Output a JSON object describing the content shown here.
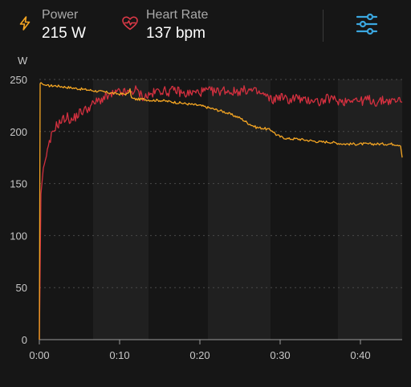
{
  "header": {
    "power": {
      "label": "Power",
      "value": "215 W",
      "icon": "lightning-bolt-icon",
      "color": "#F5A623"
    },
    "heart_rate": {
      "label": "Heart Rate",
      "value": "137 bpm",
      "icon": "heart-pulse-icon",
      "color": "#E03A48"
    },
    "filter_button": {
      "icon": "sliders-icon",
      "color": "#3BA7E0"
    }
  },
  "colors": {
    "background": "#161616",
    "band_light": "#202020",
    "band_dark": "#161616",
    "grid": "#4a4a4a",
    "axis_text": "#c8c8c8"
  },
  "chart_data": {
    "type": "line",
    "ylabel": "W",
    "ylim": [
      0,
      250
    ],
    "yticks": [
      0,
      50,
      100,
      150,
      200,
      250
    ],
    "xlim": [
      0,
      45.2
    ],
    "xticks": [
      {
        "value": 0,
        "label": "0:00"
      },
      {
        "value": 10,
        "label": "0:10"
      },
      {
        "value": 20,
        "label": "0:20"
      },
      {
        "value": 30,
        "label": "0:30"
      },
      {
        "value": 40,
        "label": "0:40"
      }
    ],
    "background_bands": [
      [
        6.7,
        13.6
      ],
      [
        21.0,
        28.8
      ],
      [
        37.2,
        45.2
      ]
    ],
    "grid": true,
    "series": [
      {
        "name": "Power",
        "color": "#F5A623",
        "x": [
          0,
          0.1,
          0.2,
          0.5,
          1,
          2,
          3,
          4,
          5,
          6,
          7,
          8,
          9,
          10,
          11,
          11.3,
          11.5,
          12,
          13,
          14,
          15,
          16,
          17,
          18,
          19,
          20,
          21,
          22,
          23,
          24,
          25,
          26,
          26.5,
          27,
          28,
          29,
          29.5,
          30,
          31,
          32,
          33,
          34,
          35,
          36,
          37,
          38,
          39,
          40,
          41,
          42,
          43,
          44,
          45,
          45.2
        ],
        "y": [
          0,
          246,
          247,
          245,
          244,
          244,
          243,
          242,
          241,
          240,
          239,
          238,
          237,
          236,
          236,
          240,
          232,
          231,
          231,
          230,
          230,
          229,
          228,
          227,
          226,
          225,
          223,
          221,
          219,
          216,
          213,
          208,
          206,
          204,
          203,
          201,
          197,
          195,
          193,
          193,
          192,
          191,
          190,
          190,
          189,
          188,
          188,
          188,
          188,
          188,
          188,
          188,
          187,
          175
        ]
      },
      {
        "name": "Heart Rate",
        "color": "#D3303F",
        "x": [
          0,
          0.2,
          0.5,
          1,
          1.5,
          2,
          2.5,
          3,
          3.5,
          4,
          5,
          6,
          7,
          8,
          9,
          10,
          11,
          12,
          13,
          14,
          15,
          16,
          17,
          18,
          19,
          20,
          21,
          22,
          23,
          24,
          25,
          26,
          27,
          28,
          29,
          30,
          31,
          32,
          33,
          34,
          35,
          36,
          37,
          38,
          39,
          40,
          41,
          42,
          43,
          44,
          45,
          45.2
        ],
        "y": [
          0,
          140,
          165,
          180,
          195,
          205,
          208,
          212,
          214,
          210,
          218,
          222,
          228,
          232,
          235,
          238,
          237,
          240,
          233,
          236,
          240,
          238,
          240,
          236,
          237,
          238,
          239,
          238,
          240,
          238,
          239,
          240,
          238,
          235,
          230,
          234,
          230,
          233,
          229,
          231,
          228,
          232,
          230,
          229,
          232,
          229,
          231,
          228,
          230,
          229,
          231,
          228
        ]
      }
    ]
  }
}
